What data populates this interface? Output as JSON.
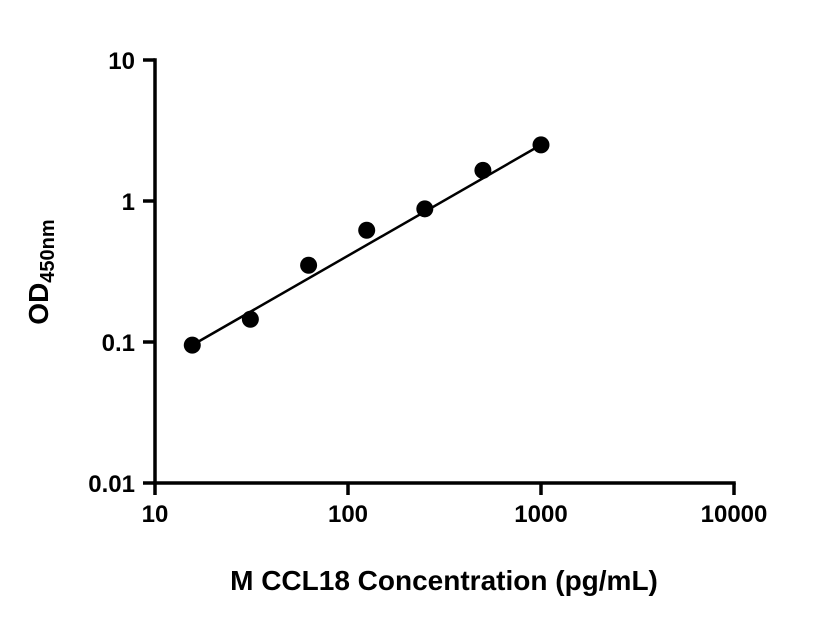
{
  "figure": {
    "background_color": "#ffffff",
    "ink_color": "#000000"
  },
  "chart_data": {
    "type": "scatter",
    "title": "",
    "xlabel": "M CCL18 Concentration (pg/mL)",
    "ylabel_main": "OD",
    "ylabel_sub": "450nm",
    "x_scale": "log",
    "y_scale": "log",
    "xlim": [
      10,
      10000
    ],
    "ylim": [
      0.01,
      10
    ],
    "grid": false,
    "legend": false,
    "x_ticks": [
      {
        "value": 10,
        "label": "10"
      },
      {
        "value": 100,
        "label": "100"
      },
      {
        "value": 1000,
        "label": "1000"
      },
      {
        "value": 10000,
        "label": "10000"
      }
    ],
    "y_ticks": [
      {
        "value": 10,
        "label": "10"
      },
      {
        "value": 1,
        "label": "1"
      },
      {
        "value": 0.1,
        "label": "0.1"
      },
      {
        "value": 0.01,
        "label": "0.01"
      }
    ],
    "points": [
      {
        "x": 15.6,
        "y": 0.095
      },
      {
        "x": 31.2,
        "y": 0.145
      },
      {
        "x": 62.5,
        "y": 0.35
      },
      {
        "x": 125,
        "y": 0.62
      },
      {
        "x": 250,
        "y": 0.88
      },
      {
        "x": 500,
        "y": 1.65
      },
      {
        "x": 1000,
        "y": 2.5
      }
    ],
    "trendline": {
      "x1": 15.6,
      "y1": 0.095,
      "x2": 1000,
      "y2": 2.5
    },
    "marker": {
      "shape": "circle",
      "radius": 8.5,
      "color": "#000000"
    },
    "line": {
      "width": 2.5,
      "color": "#000000"
    }
  }
}
